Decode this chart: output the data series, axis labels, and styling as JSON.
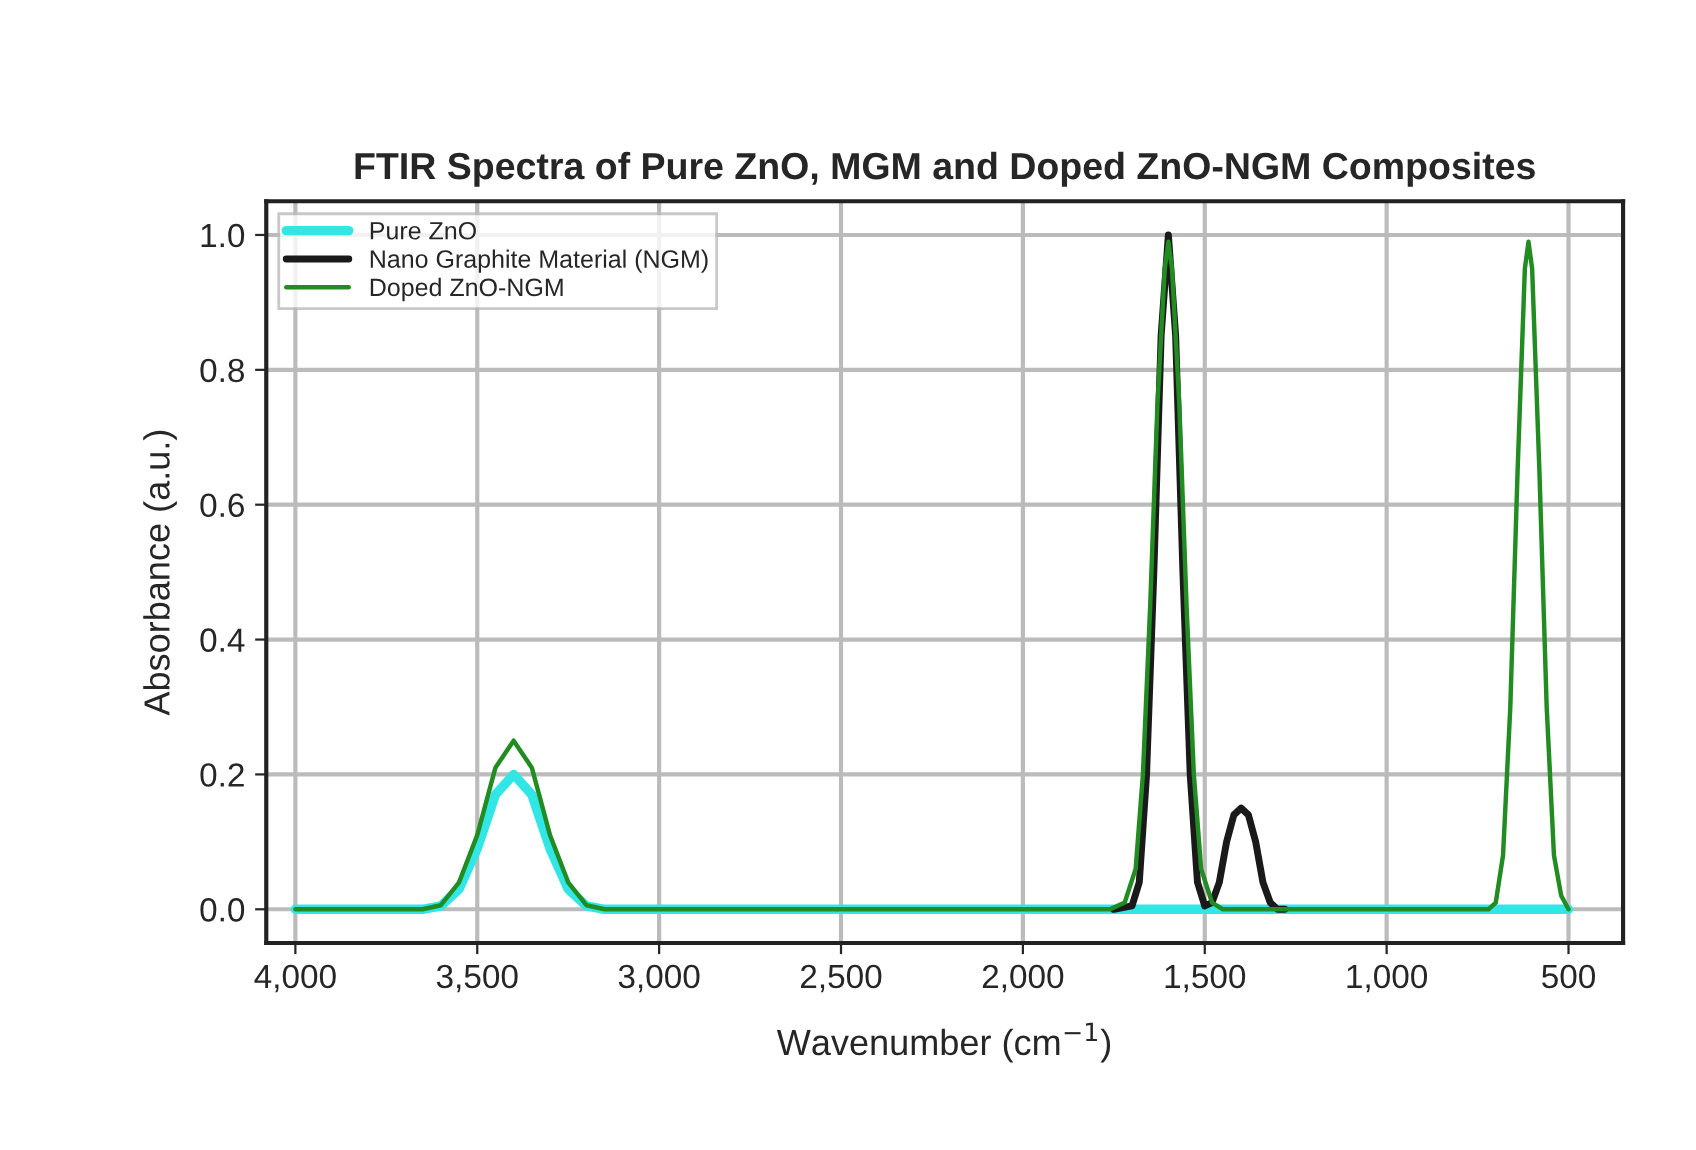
{
  "chart_data": {
    "type": "line",
    "title": "FTIR Spectra of Pure ZnO, MGM and Doped ZnO-NGM Composites",
    "xlabel": "Wavenumber (cm$^{−1}$)",
    "ylabel": "Absorbance (a.u.)",
    "xlim": [
      4080,
      350
    ],
    "ylim": [
      -0.05,
      1.05
    ],
    "xticks": [
      {
        "value": 4000,
        "label": "4,000"
      },
      {
        "value": 3500,
        "label": "3,500"
      },
      {
        "value": 3000,
        "label": "3,000"
      },
      {
        "value": 2500,
        "label": "2,500"
      },
      {
        "value": 2000,
        "label": "2,000"
      },
      {
        "value": 1500,
        "label": "1,500"
      },
      {
        "value": 1000,
        "label": "1,000"
      },
      500
    ],
    "yticks": [
      {
        "value": 0,
        "label": "0.0"
      },
      0.2,
      0.4,
      0.6,
      0.8,
      {
        "value": 1,
        "label": "1.0"
      }
    ],
    "grid": true,
    "legend": "top left",
    "line_style": "solid",
    "marker": "none",
    "series": [
      {
        "name": "Pure ZnO",
        "color": "#33e6e6",
        "x": [
          4000,
          3650,
          3600,
          3550,
          3500,
          3450,
          3400,
          3350,
          3300,
          3250,
          3200,
          3150,
          500
        ],
        "values": [
          0,
          0,
          0.005,
          0.03,
          0.09,
          0.17,
          0.2,
          0.17,
          0.09,
          0.03,
          0.005,
          0,
          0
        ]
      },
      {
        "name": "Nano Graphite Material (NGM)",
        "color": "#1a1a1a",
        "x": [
          1750,
          1700,
          1680,
          1660,
          1640,
          1620,
          1600,
          1580,
          1560,
          1540,
          1520,
          1500,
          1480,
          1460,
          1440,
          1420,
          1400,
          1380,
          1360,
          1340,
          1320,
          1300,
          1280
        ],
        "values": [
          0,
          0.005,
          0.04,
          0.2,
          0.5,
          0.85,
          1.0,
          0.85,
          0.5,
          0.2,
          0.04,
          0.005,
          0.01,
          0.04,
          0.1,
          0.14,
          0.15,
          0.14,
          0.1,
          0.04,
          0.01,
          0,
          0
        ]
      },
      {
        "name": "Doped ZnO-NGM",
        "color": "#228b22",
        "x": [
          4000,
          3650,
          3600,
          3550,
          3500,
          3450,
          3400,
          3350,
          3300,
          3250,
          3200,
          3150,
          1760,
          1720,
          1690,
          1670,
          1650,
          1630,
          1610,
          1600,
          1590,
          1570,
          1550,
          1530,
          1510,
          1480,
          1450,
          720,
          700,
          680,
          660,
          640,
          620,
          610,
          600,
          580,
          560,
          540,
          520,
          500
        ],
        "values": [
          0,
          0,
          0.006,
          0.04,
          0.11,
          0.21,
          0.25,
          0.21,
          0.11,
          0.04,
          0.006,
          0,
          0,
          0.01,
          0.06,
          0.2,
          0.45,
          0.75,
          0.95,
          0.99,
          0.95,
          0.75,
          0.45,
          0.2,
          0.06,
          0.01,
          0,
          0,
          0.01,
          0.08,
          0.3,
          0.65,
          0.95,
          0.99,
          0.95,
          0.65,
          0.3,
          0.08,
          0.02,
          0
        ]
      }
    ]
  }
}
